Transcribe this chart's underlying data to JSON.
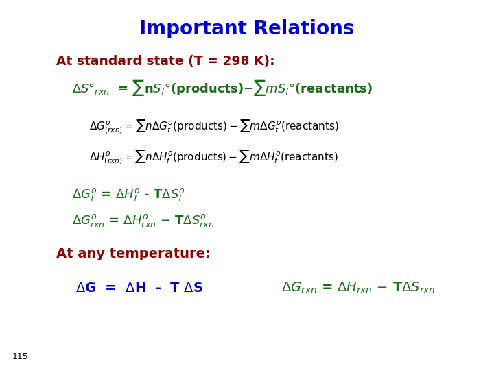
{
  "title": "Important Relations",
  "title_color": "#0000CC",
  "background_color": "#FFFFFF",
  "line1_color": "#8B0000",
  "formula_line_color": "#000000",
  "green_color": "#1A6B1A",
  "dark_red_color": "#8B0000",
  "blue_color": "#0000CC",
  "page_num_color": "#000000"
}
